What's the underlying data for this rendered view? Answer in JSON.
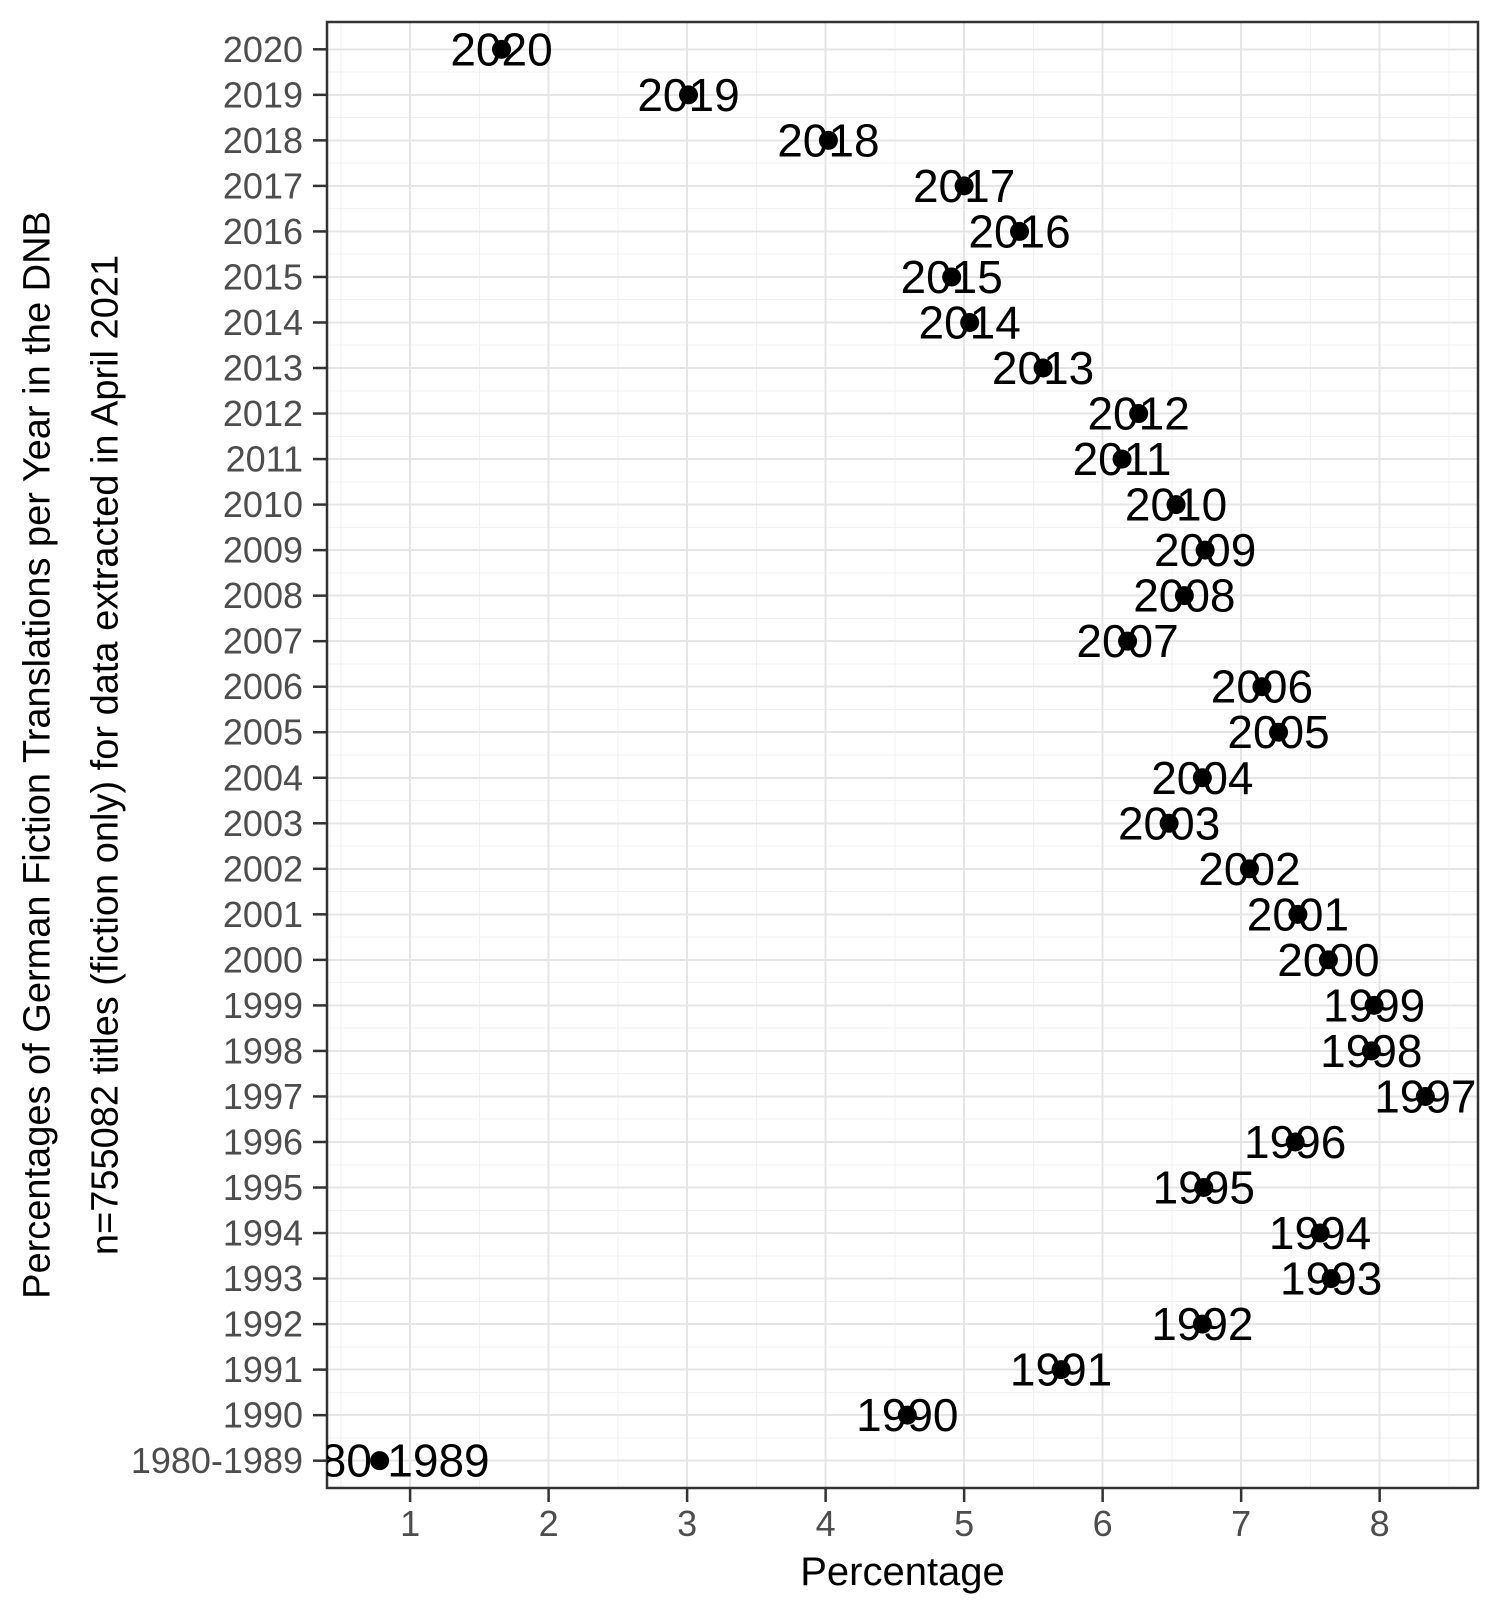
{
  "chart_data": {
    "type": "scatter",
    "orientation": "horizontal-categorical-y",
    "title": "",
    "xlabel": "Percentage",
    "ylabel_line1": "Percentages of German Fiction Translations per Year in the DNB",
    "ylabel_line2": "n=755082 titles (fiction only) for data extracted in April 2021",
    "xlim": [
      0.4,
      8.71
    ],
    "x_ticks": [
      1,
      2,
      3,
      4,
      5,
      6,
      7,
      8
    ],
    "x_minor_ticks": [
      0.5,
      1.5,
      2.5,
      3.5,
      4.5,
      5.5,
      6.5,
      7.5,
      8.5
    ],
    "grid": {
      "major": true,
      "minor": true
    },
    "legend": "none",
    "point_labels": "category-name-on-point",
    "categories": [
      "2020",
      "2019",
      "2018",
      "2017",
      "2016",
      "2015",
      "2014",
      "2013",
      "2012",
      "2011",
      "2010",
      "2009",
      "2008",
      "2007",
      "2006",
      "2005",
      "2004",
      "2003",
      "2002",
      "2001",
      "2000",
      "1999",
      "1998",
      "1997",
      "1996",
      "1995",
      "1994",
      "1993",
      "1992",
      "1991",
      "1990",
      "1980-1989"
    ],
    "values": [
      1.66,
      3.01,
      4.02,
      5.0,
      5.4,
      4.91,
      5.04,
      5.57,
      6.26,
      6.14,
      6.53,
      6.74,
      6.59,
      6.18,
      7.15,
      7.27,
      6.72,
      6.48,
      7.06,
      7.41,
      7.63,
      7.96,
      7.94,
      8.33,
      7.39,
      6.73,
      7.57,
      7.65,
      6.72,
      5.7,
      4.59,
      0.78
    ],
    "colors": {
      "point": "#000000",
      "point_label": "#000000",
      "grid_major": "#E5E5E5",
      "grid_minor": "#F0F0F0",
      "panel_border": "#333333",
      "axis_tick": "#333333",
      "tick_label": "#4D4D4D",
      "axis_title": "#000000",
      "background": "#FFFFFF"
    }
  }
}
